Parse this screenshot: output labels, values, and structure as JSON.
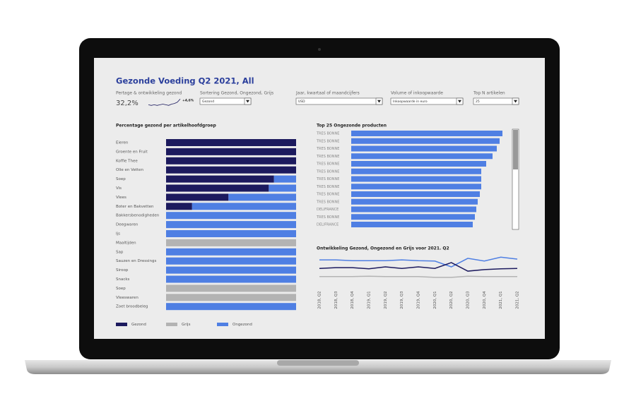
{
  "header": {
    "title": "Gezonde Voeding Q2 2021, All",
    "kpi_label": "Pertage & ontwikkeling gezond",
    "kpi_value": "32,2%",
    "kpi_change": "+4,6%",
    "kpi_trend": [
      22,
      21,
      22,
      21,
      22,
      23,
      22,
      21,
      23,
      24,
      26,
      31
    ]
  },
  "filters": [
    {
      "label": "Sortering Gezond, Ongezond, Grijs",
      "value": "Gezond"
    },
    {
      "label": "Jaar, kwartaal of maandcijfers",
      "value": "USD"
    },
    {
      "label": "Volume of inkoopwaarde",
      "value": "Inkoopwaarde in euro"
    },
    {
      "label": "Top N artikelen",
      "value": "25"
    }
  ],
  "chart_data": [
    {
      "type": "bar",
      "orientation": "horizontal",
      "stacked": true,
      "title": "Percentage gezond per artikelhoofdgroep",
      "categories": [
        "Eieren",
        "Groente en Fruit",
        "Koffie Thee",
        "Olie en Vetten",
        "Soep",
        "Vis",
        "Vlees",
        "Boter  en Bakvetten",
        "Bakkersbenodigheden",
        "Deegwaren",
        "Ijs",
        "Maaltijden",
        "Sap",
        "Sauzen en Dressings",
        "Siroop",
        "Snacks",
        "Soep",
        "Vleeswaren",
        "Zoet broodbeleg"
      ],
      "series": [
        {
          "name": "Gezond",
          "color": "#1c1a5e",
          "values": [
            100,
            100,
            100,
            100,
            83,
            79,
            48,
            20,
            0,
            0,
            0,
            0,
            0,
            0,
            0,
            0,
            0,
            0,
            0
          ]
        },
        {
          "name": "Grijs",
          "color": "#b3b3b3",
          "values": [
            0,
            0,
            0,
            0,
            0,
            0,
            0,
            0,
            0,
            0,
            0,
            100,
            0,
            0,
            0,
            0,
            100,
            100,
            0
          ]
        },
        {
          "name": "Ongezond",
          "color": "#4f7fe3",
          "values": [
            0,
            0,
            0,
            0,
            17,
            21,
            52,
            80,
            100,
            100,
            100,
            0,
            100,
            100,
            100,
            100,
            0,
            0,
            100
          ]
        }
      ]
    },
    {
      "type": "bar",
      "orientation": "horizontal",
      "title": "Top 25 Ongezonde producten",
      "categories": [
        "TRES BONNE",
        "TRES BONNE",
        "TRES BONNE",
        "TRES BONNE",
        "TRES BONNE",
        "TRES BONNE",
        "TRES BONNE",
        "TRES BONNE",
        "TRES BONNE",
        "TRES BONNE",
        "DELIFRANCE",
        "TRES BONNE",
        "DELIFRANCE"
      ],
      "values": [
        214,
        210,
        206,
        200,
        191,
        184,
        184,
        184,
        182,
        179,
        177,
        175,
        172
      ],
      "color": "#4f7fe3"
    },
    {
      "type": "line",
      "title": "Ontwikkeling Gezond, Ongezond en Grijs voor 2021. Q2",
      "categories": [
        "2018, Q2",
        "2018, Q3",
        "2018, Q4",
        "2019, Q1",
        "2019, Q2",
        "2019, Q3",
        "2019, Q4",
        "2020, Q1",
        "2020, Q2",
        "2020, Q3",
        "2020, Q4",
        "2021, Q1",
        "2021, Q2"
      ],
      "series": [
        {
          "name": "Ongezond",
          "color": "#4f7fe3",
          "values": [
            58,
            58,
            56,
            56,
            56,
            58,
            56,
            55,
            40,
            62,
            55,
            65,
            60
          ]
        },
        {
          "name": "Gezond",
          "color": "#1c1a5e",
          "values": [
            36,
            38,
            38,
            35,
            40,
            36,
            40,
            36,
            51,
            29,
            33,
            35,
            36
          ]
        },
        {
          "name": "Grijs",
          "color": "#b3b3b3",
          "values": [
            15,
            15,
            15,
            16,
            15,
            15,
            15,
            13,
            13,
            16,
            15,
            15,
            15
          ]
        }
      ]
    }
  ]
}
